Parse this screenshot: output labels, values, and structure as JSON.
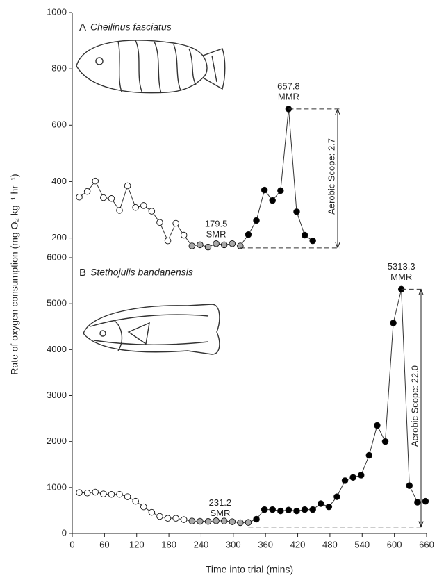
{
  "chart_data": [
    {
      "type": "line",
      "label": "A",
      "species": "Cheilinus fasciatus",
      "xlim": [
        0,
        660
      ],
      "ylim": [
        130,
        1000
      ],
      "yticks": [
        200,
        400,
        600,
        800,
        1000
      ],
      "series": [
        {
          "color": "#ffffff",
          "x": [
            13,
            28,
            43,
            58,
            73,
            88,
            103,
            118,
            133,
            148,
            163,
            178,
            193,
            208
          ],
          "values": [
            345,
            365,
            402,
            343,
            340,
            298,
            385,
            308,
            315,
            295,
            255,
            190,
            252,
            210
          ]
        },
        {
          "color": "#a8a8a8",
          "x": [
            223,
            238,
            253,
            268,
            283,
            298,
            313
          ],
          "values": [
            172,
            176,
            168,
            180,
            176,
            180,
            172
          ]
        },
        {
          "color": "#000000",
          "x": [
            328,
            343,
            358,
            373,
            388,
            403,
            418,
            433,
            448
          ],
          "values": [
            212,
            262,
            370,
            333,
            368,
            657.8,
            293,
            210,
            190
          ]
        }
      ],
      "smr": 179.5,
      "smr_label": "SMR",
      "mmr": 657.8,
      "mmr_label": "MMR",
      "scope_label": "Aerobic Scope: 2.7"
    },
    {
      "type": "line",
      "label": "B",
      "species": "Stethojulis bandanensis",
      "xlim": [
        0,
        660
      ],
      "ylim": [
        0,
        6000
      ],
      "yticks": [
        0,
        1000,
        2000,
        3000,
        4000,
        5000,
        6000
      ],
      "xticks": [
        0,
        60,
        120,
        180,
        240,
        300,
        360,
        420,
        480,
        540,
        600,
        660
      ],
      "x_label": "Time into trial (mins)",
      "y_label": "Rate of oxygen consumption (mg O₂ kg⁻¹ hr⁻¹)",
      "series": [
        {
          "color": "#ffffff",
          "x": [
            13,
            28,
            43,
            58,
            73,
            88,
            103,
            118,
            133,
            148,
            163,
            178,
            193,
            208
          ],
          "values": [
            890,
            880,
            900,
            860,
            850,
            850,
            800,
            700,
            580,
            460,
            370,
            330,
            330,
            300
          ]
        },
        {
          "color": "#a8a8a8",
          "x": [
            223,
            238,
            253,
            268,
            283,
            298,
            313,
            328
          ],
          "values": [
            270,
            265,
            260,
            275,
            270,
            255,
            235,
            240
          ]
        },
        {
          "color": "#000000",
          "x": [
            343,
            358,
            373,
            388,
            403,
            418,
            433,
            448,
            463,
            478,
            493,
            508,
            523,
            538,
            553,
            568,
            583,
            598,
            613,
            628,
            643,
            658
          ],
          "values": [
            310,
            520,
            520,
            490,
            510,
            490,
            520,
            520,
            650,
            580,
            800,
            1150,
            1220,
            1270,
            1700,
            2350,
            2000,
            4580,
            5313.3,
            1040,
            680,
            700
          ]
        }
      ],
      "smr": 231.2,
      "smr_label": "SMR",
      "mmr": 5313.3,
      "mmr_label": "MMR",
      "scope_label": "Aerobic Scope: 22.0"
    }
  ]
}
